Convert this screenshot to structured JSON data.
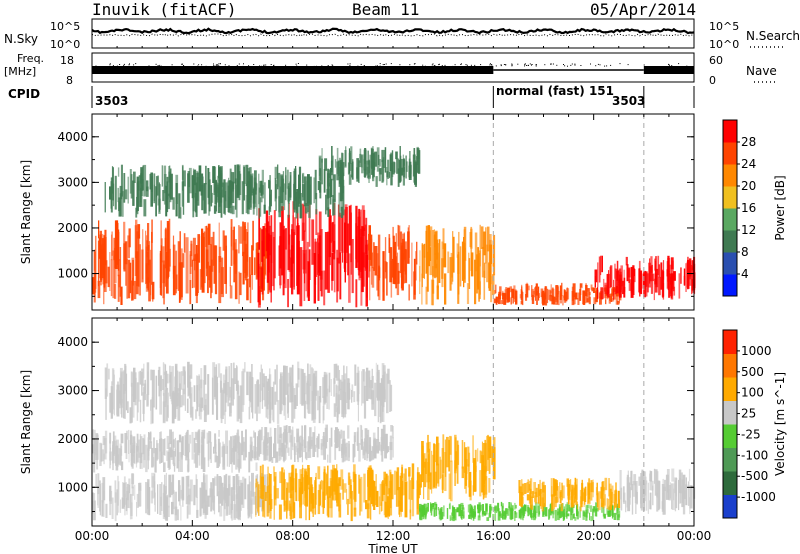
{
  "header": {
    "radar": "Inuvik (fitACF)",
    "beam": "Beam 11",
    "date": "05/Apr/2014"
  },
  "strip": {
    "nsky_label": "N.Sky",
    "nsky_ticks": [
      "10^5",
      "10^0"
    ],
    "nsearch_label": "N.Search",
    "nsearch_ticks": [
      "10^5",
      "10^0"
    ],
    "freq_label_1": "Freq.",
    "freq_label_2": "[MHz]",
    "freq_ticks": [
      "18",
      "8"
    ],
    "nave_label": "Nave",
    "nave_ticks": [
      "60",
      "0"
    ],
    "cpid_label": "CPID",
    "cpid_segments": [
      {
        "start": 0.0,
        "end": 16.0,
        "label": "3503"
      },
      {
        "start": 16.0,
        "end": 22.0,
        "label": "normal (fast) 151"
      },
      {
        "start": 22.0,
        "end": 24.0,
        "label": "3503"
      }
    ]
  },
  "colors": {
    "power_scale": [
      "#0018ff",
      "#2a4fb0",
      "#3f7a52",
      "#5aa861",
      "#f0c020",
      "#ff8800",
      "#ff4400",
      "#ff0000"
    ],
    "velocity_scale": [
      "#1a3fcc",
      "#2e6b3c",
      "#4f9a56",
      "#55cc33",
      "#c8c8c8",
      "#ffaa00",
      "#ff7700",
      "#ff2200"
    ]
  },
  "chart_data": [
    {
      "type": "heatmap",
      "quantity": "Power",
      "ylabel": "Slant Range [km]",
      "xlabel": "Time UT",
      "colorbar_label": "Power [dB]",
      "colorbar_ticks": [
        "28",
        "24",
        "20",
        "16",
        "12",
        "8",
        "4"
      ],
      "colorbar_range": [
        0,
        32
      ],
      "xlim": [
        0,
        24
      ],
      "ylim": [
        200,
        4500
      ],
      "xticks": [
        "00:00",
        "04:00",
        "08:00",
        "12:00",
        "16:00",
        "20:00",
        "00:00"
      ],
      "yticks": [
        "1000",
        "2000",
        "3000",
        "4000"
      ],
      "bands": [
        {
          "t_start": 0.0,
          "t_end": 7.0,
          "r_low": 300,
          "r_high": 2200,
          "level": 24
        },
        {
          "t_start": 6.5,
          "t_end": 11.0,
          "r_low": 250,
          "r_high": 2600,
          "level": 28
        },
        {
          "t_start": 11.0,
          "t_end": 13.0,
          "r_low": 400,
          "r_high": 2100,
          "level": 24
        },
        {
          "t_start": 13.0,
          "t_end": 16.0,
          "r_low": 300,
          "r_high": 2100,
          "level": 20
        },
        {
          "t_start": 16.0,
          "t_end": 21.0,
          "r_low": 300,
          "r_high": 800,
          "level": 24
        },
        {
          "t_start": 20.0,
          "t_end": 24.0,
          "r_low": 400,
          "r_high": 1400,
          "level": 28
        },
        {
          "t_start": 0.5,
          "t_end": 10.0,
          "r_low": 2200,
          "r_high": 3400,
          "level": 8
        },
        {
          "t_start": 9.0,
          "t_end": 13.0,
          "r_low": 2900,
          "r_high": 3800,
          "level": 8
        }
      ]
    },
    {
      "type": "heatmap",
      "quantity": "Velocity",
      "ylabel": "Slant Range [km]",
      "xlabel": "Time UT",
      "colorbar_label": "Velocity [m s^-1]",
      "colorbar_ticks": [
        "1000",
        "500",
        "100",
        "25",
        "-25",
        "-100",
        "-500",
        "-1000"
      ],
      "colorbar_range": [
        -1200,
        1200
      ],
      "xlim": [
        0,
        24
      ],
      "ylim": [
        200,
        4500
      ],
      "xticks": [
        "00:00",
        "04:00",
        "08:00",
        "12:00",
        "16:00",
        "20:00",
        "00:00"
      ],
      "yticks": [
        "1000",
        "2000",
        "3000",
        "4000"
      ],
      "bands": [
        {
          "t_start": 0.0,
          "t_end": 7.0,
          "r_low": 1300,
          "r_high": 2200,
          "level": 0
        },
        {
          "t_start": 0.0,
          "t_end": 7.0,
          "r_low": 300,
          "r_high": 1300,
          "level": 60
        },
        {
          "t_start": 6.5,
          "t_end": 12.0,
          "r_low": 1500,
          "r_high": 2300,
          "level": 0
        },
        {
          "t_start": 6.5,
          "t_end": 13.0,
          "r_low": 300,
          "r_high": 1500,
          "level": 300
        },
        {
          "t_start": 13.0,
          "t_end": 16.0,
          "r_low": 700,
          "r_high": 2100,
          "level": 500
        },
        {
          "t_start": 13.0,
          "t_end": 21.0,
          "r_low": 300,
          "r_high": 700,
          "level": -300
        },
        {
          "t_start": 17.0,
          "t_end": 21.0,
          "r_low": 500,
          "r_high": 1200,
          "level": 300
        },
        {
          "t_start": 21.0,
          "t_end": 24.0,
          "r_low": 400,
          "r_high": 1400,
          "level": 60
        },
        {
          "t_start": 0.5,
          "t_end": 12.0,
          "r_low": 2300,
          "r_high": 3600,
          "level": 100
        }
      ]
    }
  ]
}
